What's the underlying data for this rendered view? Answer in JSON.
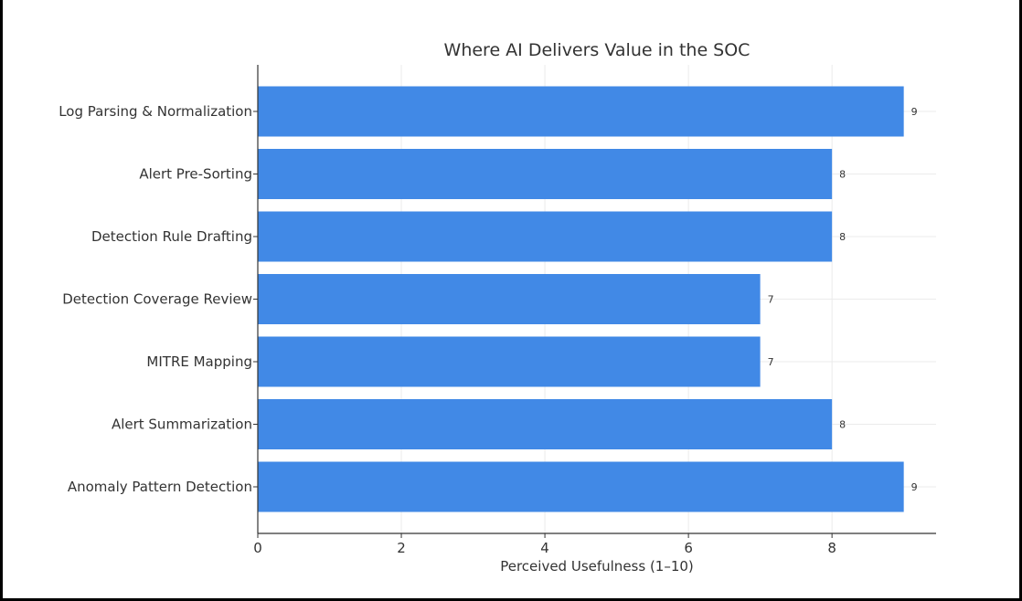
{
  "chart_data": {
    "type": "bar",
    "orientation": "horizontal",
    "title": "Where AI Delivers Value in the SOC",
    "xlabel": "Perceived Usefulness (1–10)",
    "ylabel": "",
    "categories": [
      "Log Parsing & Normalization",
      "Alert Pre-Sorting",
      "Detection Rule Drafting",
      "Detection Coverage Review",
      "MITRE Mapping",
      "Alert Summarization",
      "Anomaly Pattern Detection"
    ],
    "values": [
      9,
      8,
      8,
      7,
      7,
      8,
      9
    ],
    "value_labels": [
      "9",
      "8",
      "8",
      "7",
      "7",
      "8",
      "9"
    ],
    "xlim": [
      0,
      9.45
    ],
    "xticks": [
      0,
      2,
      4,
      6,
      8
    ],
    "xtick_labels": [
      "0",
      "2",
      "4",
      "6",
      "8"
    ],
    "grid": true,
    "bar_color": "#4189e6",
    "grid_color": "#ebebeb",
    "axis_color": "#333333"
  }
}
